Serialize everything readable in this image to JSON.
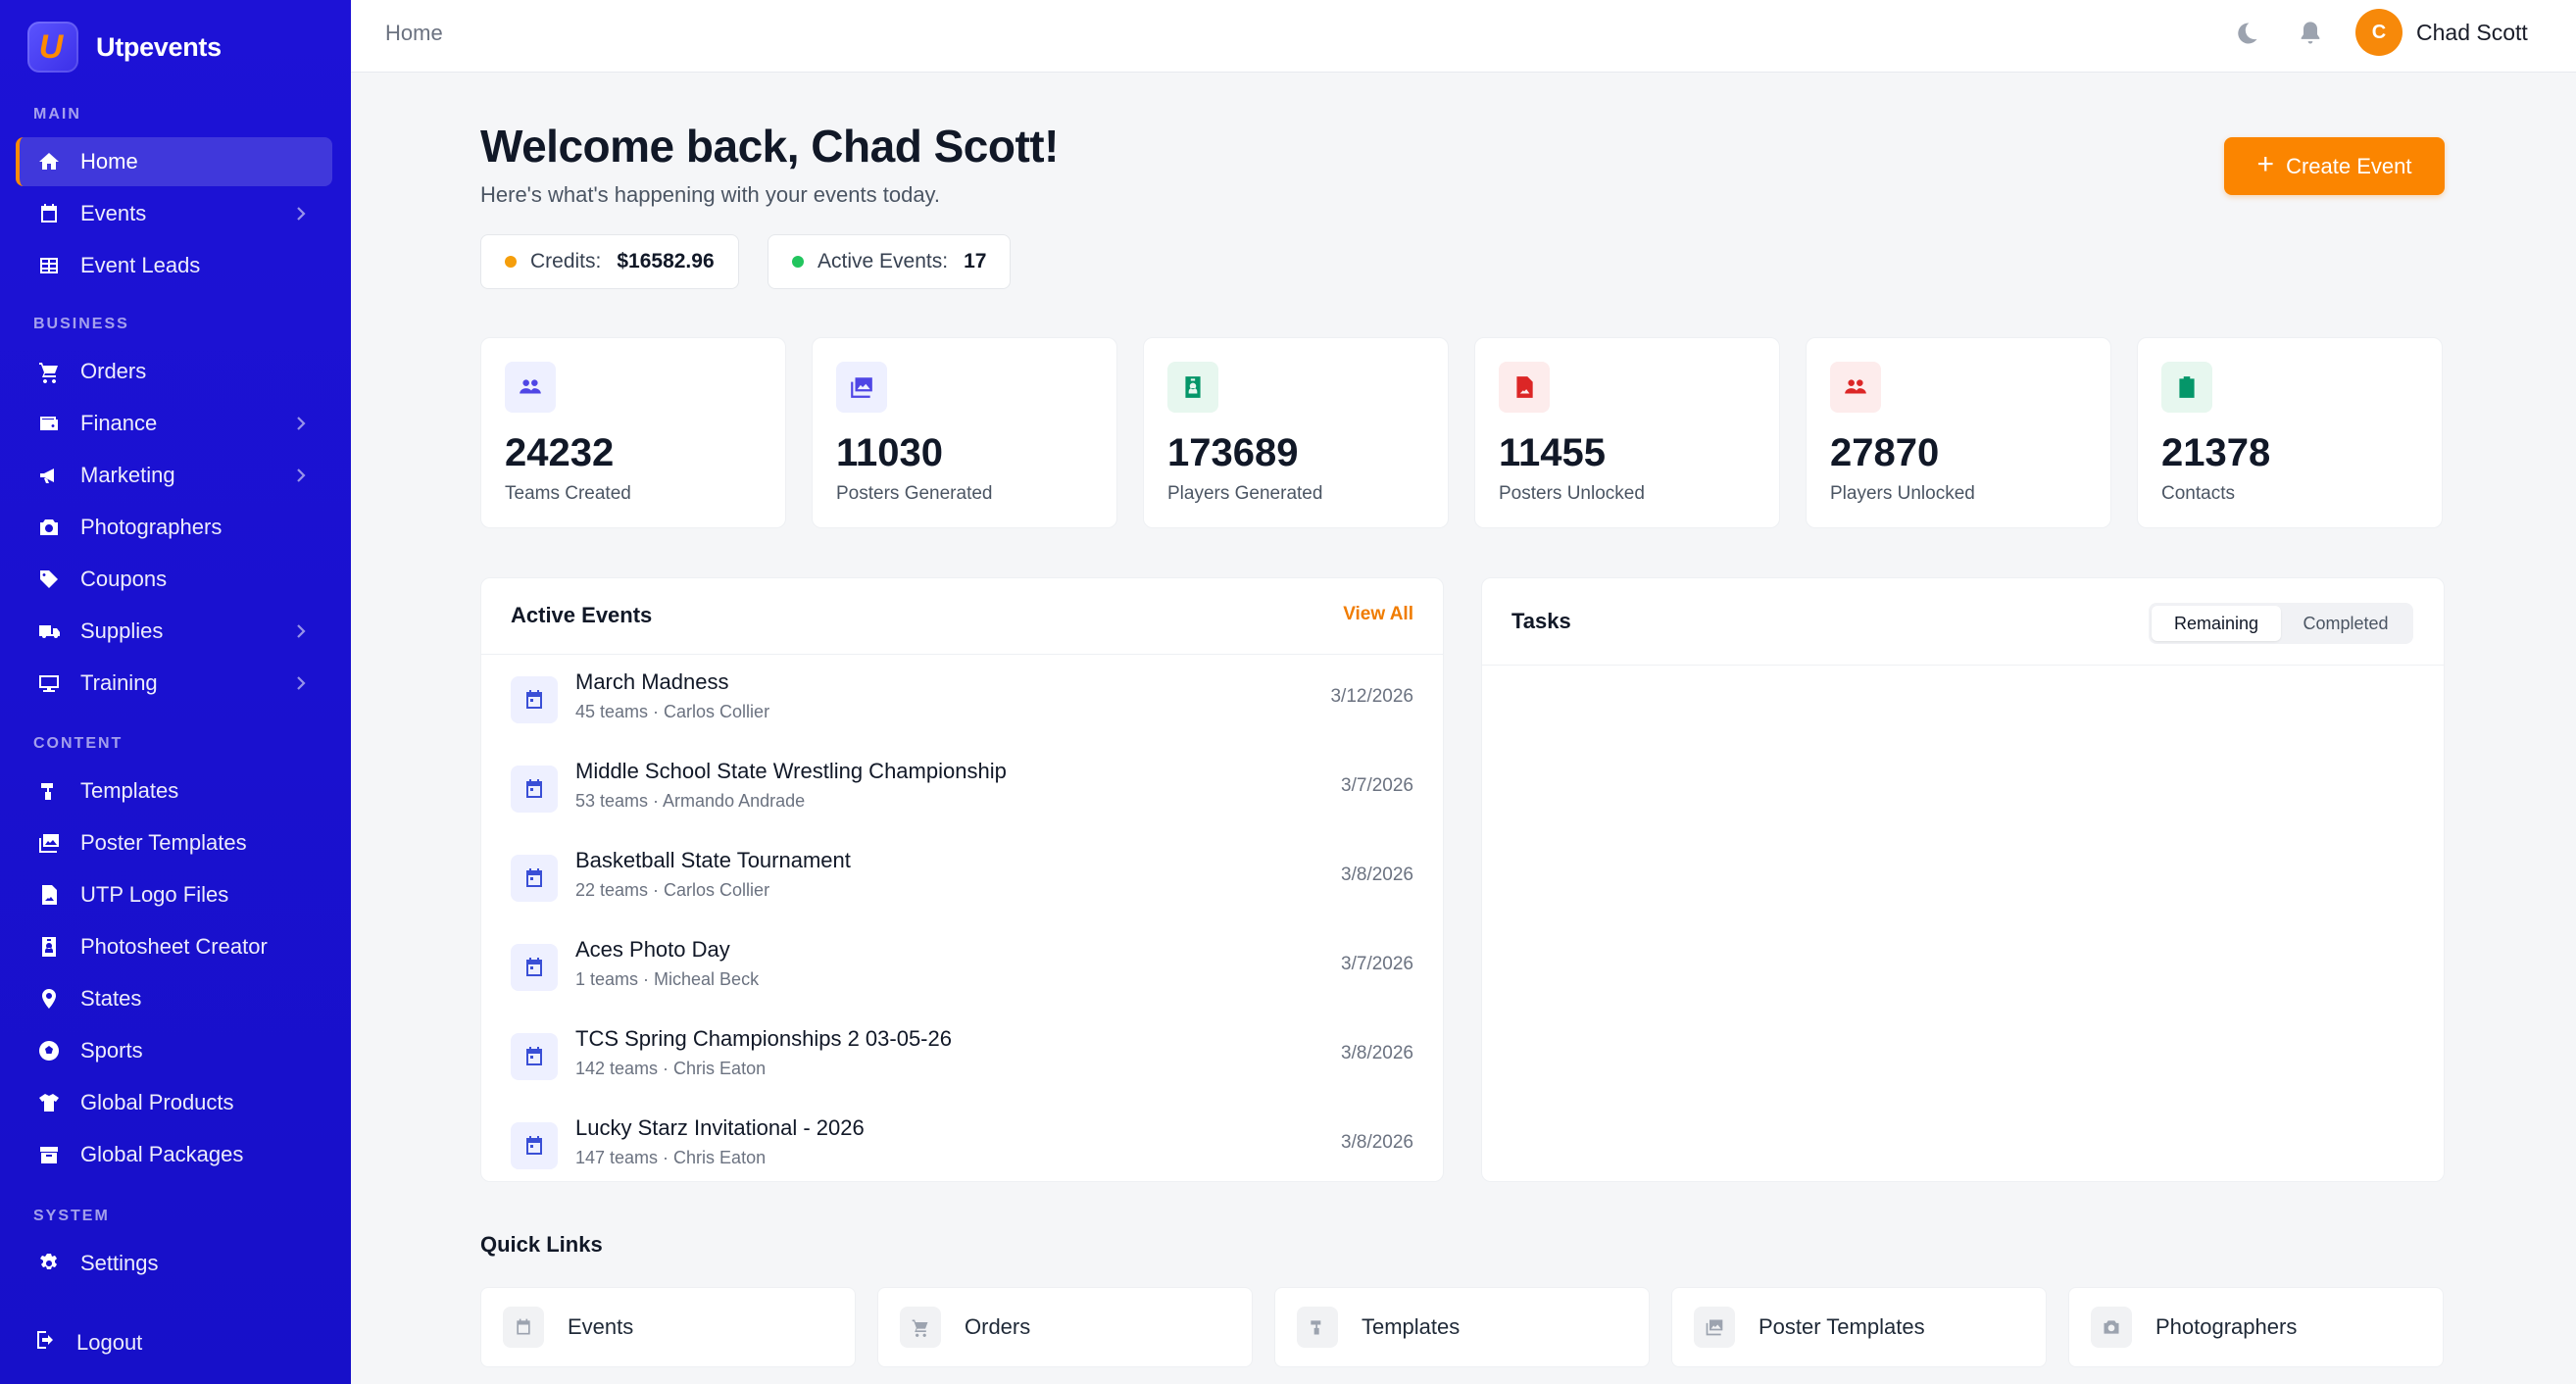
{
  "app": {
    "name": "Utpevents",
    "logo_letter": "U"
  },
  "sidebar": {
    "sections": {
      "main": "MAIN",
      "business": "BUSINESS",
      "content": "CONTENT",
      "system": "SYSTEM"
    },
    "items": [
      {
        "label": "Home",
        "icon": "home-icon",
        "active": true
      },
      {
        "label": "Events",
        "icon": "calendar-icon",
        "chevron": true
      },
      {
        "label": "Event Leads",
        "icon": "table-icon"
      },
      {
        "label": "Orders",
        "icon": "cart-icon"
      },
      {
        "label": "Finance",
        "icon": "wallet-icon",
        "chevron": true
      },
      {
        "label": "Marketing",
        "icon": "megaphone-icon",
        "chevron": true
      },
      {
        "label": "Photographers",
        "icon": "camera-icon"
      },
      {
        "label": "Coupons",
        "icon": "tag-icon"
      },
      {
        "label": "Supplies",
        "icon": "truck-icon",
        "chevron": true
      },
      {
        "label": "Training",
        "icon": "chalkboard-icon",
        "chevron": true
      },
      {
        "label": "Templates",
        "icon": "brush-icon"
      },
      {
        "label": "Poster Templates",
        "icon": "images-icon"
      },
      {
        "label": "UTP Logo Files",
        "icon": "file-image-icon"
      },
      {
        "label": "Photosheet Creator",
        "icon": "id-badge-icon"
      },
      {
        "label": "States",
        "icon": "map-pin-icon"
      },
      {
        "label": "Sports",
        "icon": "ball-icon"
      },
      {
        "label": "Global Products",
        "icon": "shirt-icon"
      },
      {
        "label": "Global Packages",
        "icon": "box-icon"
      },
      {
        "label": "Settings",
        "icon": "gear-icon"
      }
    ],
    "logout": "Logout"
  },
  "topbar": {
    "breadcrumb": "Home",
    "user_name": "Chad Scott",
    "avatar_initial": "C"
  },
  "welcome": {
    "title": "Welcome back, Chad Scott!",
    "subtitle": "Here's what's happening with your events today.",
    "create_button": "Create Event",
    "credits_label": "Credits:",
    "credits_value": "$16582.96",
    "active_events_label": "Active Events:",
    "active_events_value": "17"
  },
  "stats": [
    {
      "value": "24232",
      "label": "Teams Created",
      "icon": "users-icon",
      "color": "#4f46e5",
      "bg": "#eef0ff"
    },
    {
      "value": "11030",
      "label": "Posters Generated",
      "icon": "images-icon",
      "color": "#4f46e5",
      "bg": "#eef0ff"
    },
    {
      "value": "173689",
      "label": "Players Generated",
      "icon": "id-badge-icon",
      "color": "#059669",
      "bg": "#e7f7ef"
    },
    {
      "value": "11455",
      "label": "Posters Unlocked",
      "icon": "file-image-icon",
      "color": "#dc2626",
      "bg": "#fdecec"
    },
    {
      "value": "27870",
      "label": "Players Unlocked",
      "icon": "users-icon",
      "color": "#dc2626",
      "bg": "#fdecec"
    },
    {
      "value": "21378",
      "label": "Contacts",
      "icon": "clipboard-icon",
      "color": "#059669",
      "bg": "#e7f7ef"
    }
  ],
  "active_events": {
    "title": "Active Events",
    "view_all": "View All",
    "rows": [
      {
        "name": "March Madness",
        "meta": "45 teams · Carlos Collier",
        "date": "3/12/2026"
      },
      {
        "name": "Middle School State Wrestling Championship",
        "meta": "53 teams · Armando Andrade",
        "date": "3/7/2026"
      },
      {
        "name": "Basketball State Tournament",
        "meta": "22 teams · Carlos Collier",
        "date": "3/8/2026"
      },
      {
        "name": "Aces Photo Day",
        "meta": "1 teams · Micheal Beck",
        "date": "3/7/2026"
      },
      {
        "name": "TCS Spring Championships 2 03-05-26",
        "meta": "142 teams · Chris Eaton",
        "date": "3/8/2026"
      },
      {
        "name": "Lucky Starz Invitational - 2026",
        "meta": "147 teams · Chris Eaton",
        "date": "3/8/2026"
      }
    ]
  },
  "tasks": {
    "title": "Tasks",
    "tabs": [
      "Remaining",
      "Completed"
    ],
    "active_tab": "Remaining"
  },
  "quick_links": {
    "title": "Quick Links",
    "items": [
      {
        "label": "Events",
        "icon": "calendar-icon"
      },
      {
        "label": "Orders",
        "icon": "cart-icon"
      },
      {
        "label": "Templates",
        "icon": "brush-icon"
      },
      {
        "label": "Poster Templates",
        "icon": "images-icon"
      },
      {
        "label": "Photographers",
        "icon": "camera-icon"
      }
    ]
  },
  "colors": {
    "sidebar": "#1d12d6",
    "accent": "#fb8500",
    "credits_dot": "#f59e0b",
    "active_dot": "#22c55e"
  }
}
